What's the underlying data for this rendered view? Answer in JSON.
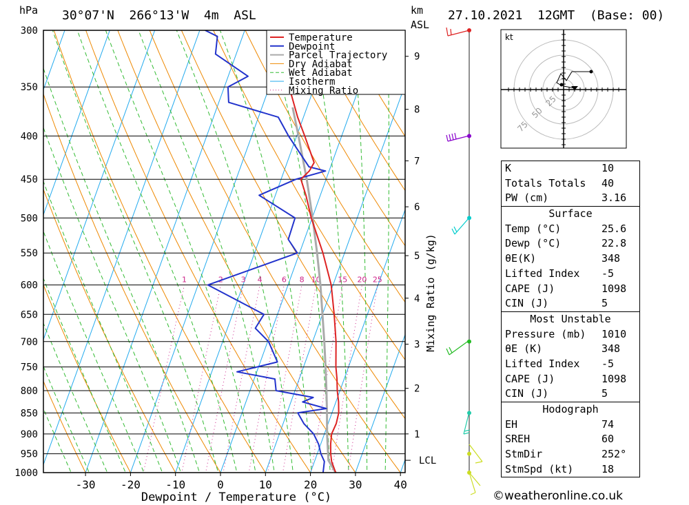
{
  "header": {
    "unit_left": "hPa",
    "location": "30°07'N  266°13'W  4m  ASL",
    "unit_km": "km",
    "unit_asl": "ASL",
    "datetime": "27.10.2021  12GMT  (Base: 00)"
  },
  "chart_data": {
    "type": "line",
    "title": "30°07'N  266°13'W  4m  ASL",
    "xlabel": "Dewpoint / Temperature (°C)",
    "ylabel": "hPa",
    "secondary_ylabel": "Mixing Ratio (g/kg)",
    "pressure_levels": [
      300,
      350,
      400,
      450,
      500,
      550,
      600,
      650,
      700,
      750,
      800,
      850,
      900,
      950,
      1000
    ],
    "x_ticks": [
      -30,
      -20,
      -10,
      0,
      10,
      20,
      30,
      40
    ],
    "xlim": [
      -40,
      40
    ],
    "height_km_ticks": [
      {
        "km": "1",
        "p": 900
      },
      {
        "km": "2",
        "p": 795
      },
      {
        "km": "3",
        "p": 705
      },
      {
        "km": "4",
        "p": 622
      },
      {
        "km": "5",
        "p": 554
      },
      {
        "km": "6",
        "p": 485
      },
      {
        "km": "7",
        "p": 428
      },
      {
        "km": "8",
        "p": 372
      },
      {
        "km": "9",
        "p": 322
      }
    ],
    "lcl_label": "LCL",
    "lcl_pressure": 967,
    "mixing_ratio_labels": [
      "1",
      "2",
      "3",
      "4",
      "6",
      "8",
      "10",
      "15",
      "20",
      "25"
    ],
    "legend": [
      "Temperature",
      "Dewpoint",
      "Parcel Trajectory",
      "Dry Adiabat",
      "Wet Adiabat",
      "Isotherm",
      "Mixing Ratio"
    ],
    "legend_colors": [
      "#dd2222",
      "#2233cc",
      "#aaaaaa",
      "#ee8800",
      "#33bb33",
      "#22aaee",
      "#cc2288"
    ],
    "series": [
      {
        "name": "Temperature",
        "color": "#dd2222",
        "points": [
          [
            1000,
            25.6
          ],
          [
            970,
            23.8
          ],
          [
            950,
            23.0
          ],
          [
            925,
            22.2
          ],
          [
            900,
            21.6
          ],
          [
            875,
            21.8
          ],
          [
            850,
            21.5
          ],
          [
            825,
            20.6
          ],
          [
            800,
            19.4
          ],
          [
            775,
            18.4
          ],
          [
            750,
            17.2
          ],
          [
            700,
            15.2
          ],
          [
            650,
            12.6
          ],
          [
            600,
            9.6
          ],
          [
            550,
            5.2
          ],
          [
            500,
            -0.2
          ],
          [
            470,
            -3.2
          ],
          [
            450,
            -5.6
          ],
          [
            440,
            -4.4
          ],
          [
            430,
            -4.0
          ],
          [
            400,
            -8.2
          ],
          [
            380,
            -11.3
          ],
          [
            350,
            -15.6
          ],
          [
            320,
            -20.5
          ],
          [
            300,
            -24.0
          ]
        ]
      },
      {
        "name": "Dewpoint",
        "color": "#2233cc",
        "points": [
          [
            1000,
            22.8
          ],
          [
            970,
            22.2
          ],
          [
            950,
            20.8
          ],
          [
            925,
            19.5
          ],
          [
            900,
            17.6
          ],
          [
            875,
            14.6
          ],
          [
            850,
            12.4
          ],
          [
            840,
            18.4
          ],
          [
            825,
            12.6
          ],
          [
            815,
            14.6
          ],
          [
            800,
            5.8
          ],
          [
            775,
            4.6
          ],
          [
            760,
            -4.4
          ],
          [
            740,
            3.8
          ],
          [
            700,
            0.2
          ],
          [
            675,
            -3.8
          ],
          [
            650,
            -3.0
          ],
          [
            600,
            -17.8
          ],
          [
            550,
            -0.5
          ],
          [
            530,
            -3.6
          ],
          [
            500,
            -3.8
          ],
          [
            470,
            -13.6
          ],
          [
            450,
            -6.7
          ],
          [
            440,
            -0.8
          ],
          [
            435,
            -4.8
          ],
          [
            400,
            -11.8
          ],
          [
            380,
            -15.6
          ],
          [
            365,
            -27.8
          ],
          [
            350,
            -29.2
          ],
          [
            340,
            -25.6
          ],
          [
            320,
            -34.6
          ],
          [
            305,
            -35.6
          ],
          [
            300,
            -38.8
          ]
        ]
      },
      {
        "name": "Parcel Trajectory",
        "color": "#aaaaaa",
        "points": [
          [
            1000,
            25.6
          ],
          [
            967,
            23.0
          ],
          [
            900,
            20.6
          ],
          [
            850,
            18.9
          ],
          [
            800,
            17.0
          ],
          [
            750,
            14.9
          ],
          [
            700,
            12.6
          ],
          [
            650,
            10.0
          ],
          [
            600,
            7.2
          ],
          [
            550,
            3.9
          ],
          [
            500,
            0.1
          ],
          [
            450,
            -4.3
          ],
          [
            400,
            -9.6
          ],
          [
            370,
            -13.2
          ]
        ]
      }
    ],
    "wind_barbs": [
      {
        "p": 300,
        "color": "#dd2222"
      },
      {
        "p": 400,
        "color": "#8800cc"
      },
      {
        "p": 500,
        "color": "#00cccc"
      },
      {
        "p": 700,
        "color": "#22bb22"
      },
      {
        "p": 850,
        "color": "#22ccaa"
      },
      {
        "p": 950,
        "color": "#ccdd22"
      },
      {
        "p": 1000,
        "color": "#ccdd22"
      }
    ]
  },
  "hodograph": {
    "unit": "kt",
    "ring_labels": [
      "25",
      "50",
      "75"
    ]
  },
  "indices": {
    "rows": [
      {
        "label": "K",
        "value": "10"
      },
      {
        "label": "Totals Totals",
        "value": "40"
      },
      {
        "label": "PW (cm)",
        "value": "3.16"
      }
    ]
  },
  "surface": {
    "title": "Surface",
    "rows": [
      {
        "label": "Temp (°C)",
        "value": "25.6"
      },
      {
        "label": "Dewp (°C)",
        "value": "22.8"
      },
      {
        "label": "θE(K)",
        "value": "348"
      },
      {
        "label": "Lifted Index",
        "value": "-5"
      },
      {
        "label": "CAPE (J)",
        "value": "1098"
      },
      {
        "label": "CIN (J)",
        "value": "5"
      }
    ]
  },
  "most_unstable": {
    "title": "Most Unstable",
    "rows": [
      {
        "label": "Pressure (mb)",
        "value": "1010"
      },
      {
        "label": "θE (K)",
        "value": "348"
      },
      {
        "label": "Lifted Index",
        "value": "-5"
      },
      {
        "label": "CAPE (J)",
        "value": "1098"
      },
      {
        "label": "CIN (J)",
        "value": "5"
      }
    ]
  },
  "hodograph_table": {
    "title": "Hodograph",
    "rows": [
      {
        "label": "EH",
        "value": "74"
      },
      {
        "label": "SREH",
        "value": "60"
      },
      {
        "label": "StmDir",
        "value": "252°"
      },
      {
        "label": "StmSpd (kt)",
        "value": "18"
      }
    ]
  },
  "credit": "©weatheronline.co.uk"
}
